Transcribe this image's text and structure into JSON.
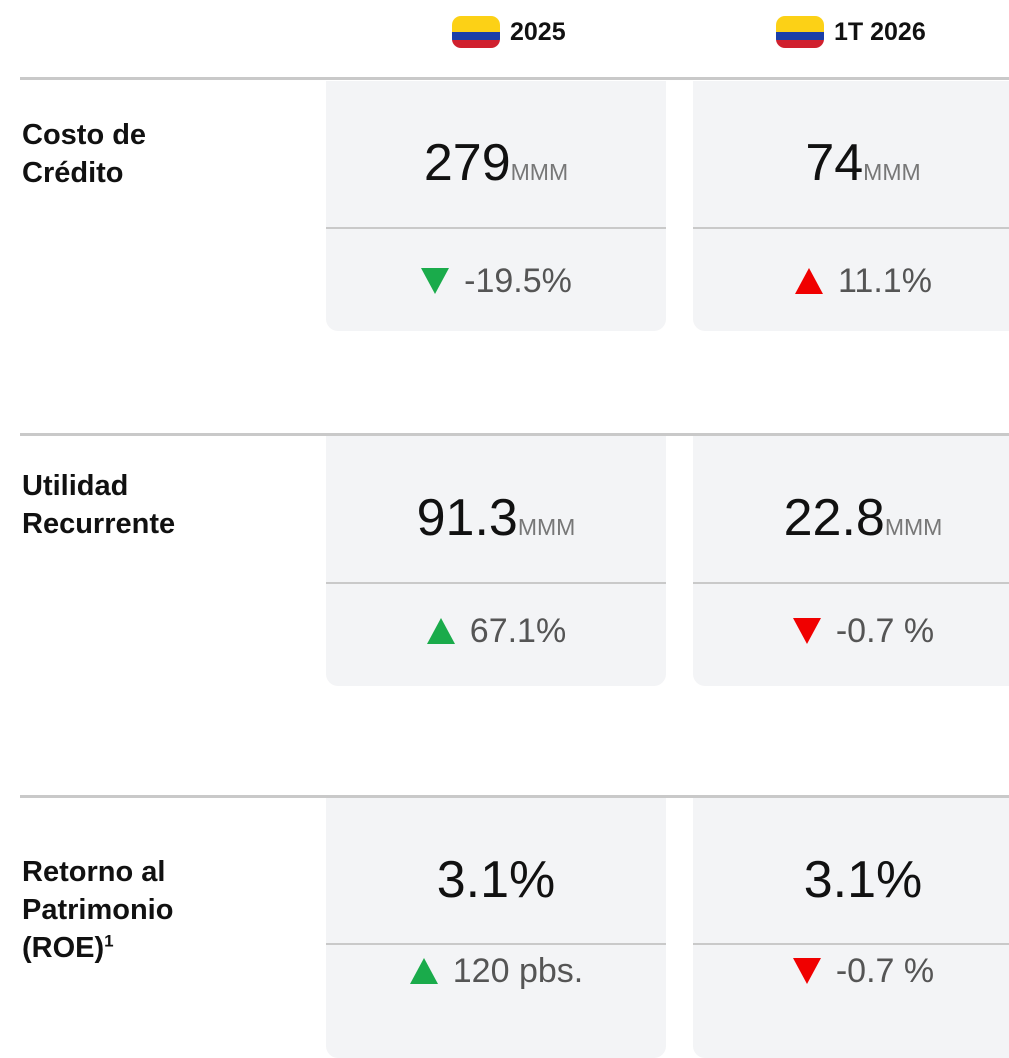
{
  "header": {
    "columns": [
      {
        "label": "2025"
      },
      {
        "label": "1T 2026"
      }
    ]
  },
  "rows": [
    {
      "label": "Costo de Crédito",
      "cells": [
        {
          "value": "279",
          "unit": "MMM",
          "change": "-19.5%",
          "arrow": "down",
          "arrow_color": "#1aab4b"
        },
        {
          "value": "74",
          "unit": "MMM",
          "change": "11.1%",
          "arrow": "up",
          "arrow_color": "#f00000"
        }
      ]
    },
    {
      "label": "Utilidad Recurrente",
      "cells": [
        {
          "value": "91.3",
          "unit": "MMM",
          "change": "67.1%",
          "arrow": "up",
          "arrow_color": "#1aab4b"
        },
        {
          "value": "22.8",
          "unit": "MMM",
          "change": "-0.7 %",
          "arrow": "down",
          "arrow_color": "#f00000"
        }
      ]
    },
    {
      "label": "Retorno al Patrimonio (ROE)",
      "superscript": "1",
      "cells": [
        {
          "value": "3.1%",
          "change": "120 pbs.",
          "arrow": "up",
          "arrow_color": "#1aab4b"
        },
        {
          "value": "3.1%",
          "change": "-0.7 %",
          "arrow": "down",
          "arrow_color": "#f00000"
        }
      ]
    }
  ]
}
